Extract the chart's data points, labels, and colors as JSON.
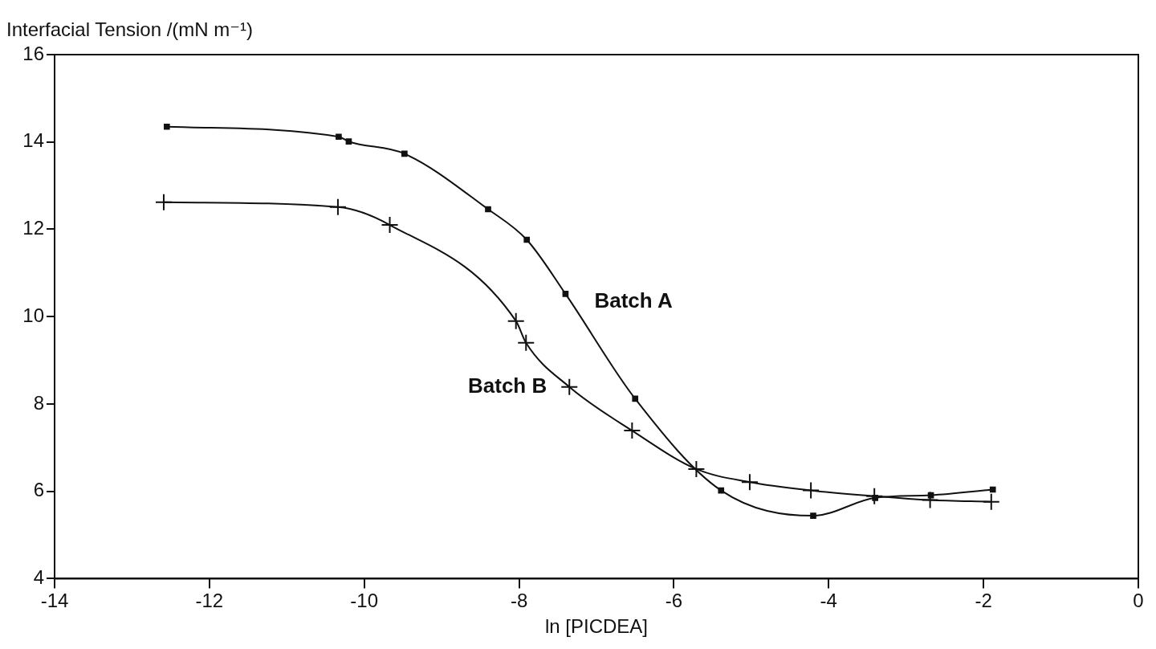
{
  "chart_data": {
    "type": "line",
    "ylabel": "Interfacial Tension /(mN m⁻¹)",
    "xlabel": "ln [PICDEA]",
    "xlim": [
      -14,
      0
    ],
    "xticks": [
      -14,
      -12,
      -10,
      -8,
      -6,
      -4,
      -2,
      0
    ],
    "ylim": [
      4,
      16
    ],
    "yticks": [
      4,
      6,
      8,
      10,
      12,
      14,
      16
    ],
    "grid": false,
    "legend": false,
    "series": [
      {
        "name": "Batch A",
        "color": "#111111",
        "marker": "square",
        "x": [
          -12.55,
          -10.33,
          -10.2,
          -9.48,
          -8.4,
          -7.9,
          -7.4,
          -6.5,
          -5.39,
          -4.2,
          -3.4,
          -2.68,
          -1.88
        ],
        "values": [
          14.35,
          14.12,
          14.01,
          13.73,
          12.46,
          11.76,
          10.52,
          8.12,
          6.02,
          5.44,
          5.85,
          5.91,
          6.04
        ]
      },
      {
        "name": "Batch B",
        "color": "#111111",
        "marker": "cross",
        "x": [
          -12.59,
          -10.34,
          -9.67,
          -8.04,
          -7.91,
          -7.35,
          -6.54,
          -5.71,
          -5.02,
          -4.23,
          -3.41,
          -2.69,
          -1.9
        ],
        "values": [
          12.62,
          12.51,
          12.1,
          9.9,
          9.4,
          8.39,
          7.39,
          6.51,
          6.21,
          6.02,
          5.89,
          5.8,
          5.76
        ]
      }
    ]
  }
}
